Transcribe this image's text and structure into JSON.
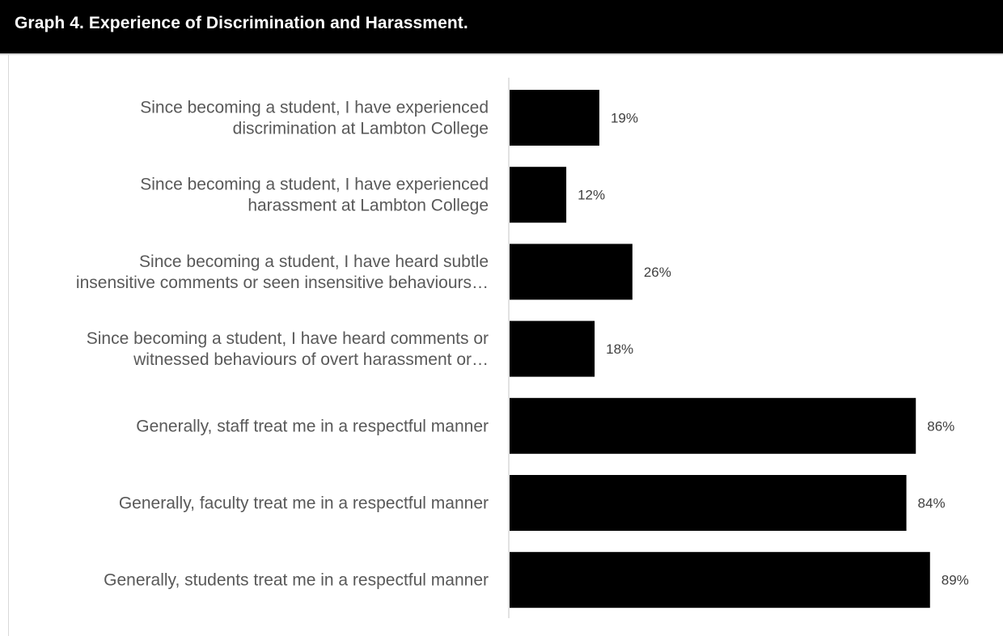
{
  "header": {
    "title": "Graph 4. Experience of Discrimination and Harassment."
  },
  "chart_data": {
    "type": "bar",
    "orientation": "horizontal",
    "title": "Graph 4. Experience of Discrimination and Harassment.",
    "categories": [
      [
        "Since becoming a student, I have experienced",
        "discrimination at Lambton College"
      ],
      [
        "Since becoming a student, I have experienced",
        "harassment at Lambton College"
      ],
      [
        "Since becoming a student, I have heard subtle",
        "insensitive comments or seen insensitive behaviours…"
      ],
      [
        "Since becoming a student, I have heard comments or",
        "witnessed behaviours of overt harassment or…"
      ],
      [
        "Generally, staff treat me in a respectful manner"
      ],
      [
        "Generally, faculty treat me in a respectful manner"
      ],
      [
        "Generally, students treat me in a respectful manner"
      ]
    ],
    "values": [
      19,
      12,
      26,
      18,
      86,
      84,
      89
    ],
    "value_labels": [
      "19%",
      "12%",
      "26%",
      "18%",
      "86%",
      "84%",
      "89%"
    ],
    "bar_color": "#000000",
    "xlim": [
      0,
      100
    ],
    "grid": false,
    "legend": "none"
  }
}
